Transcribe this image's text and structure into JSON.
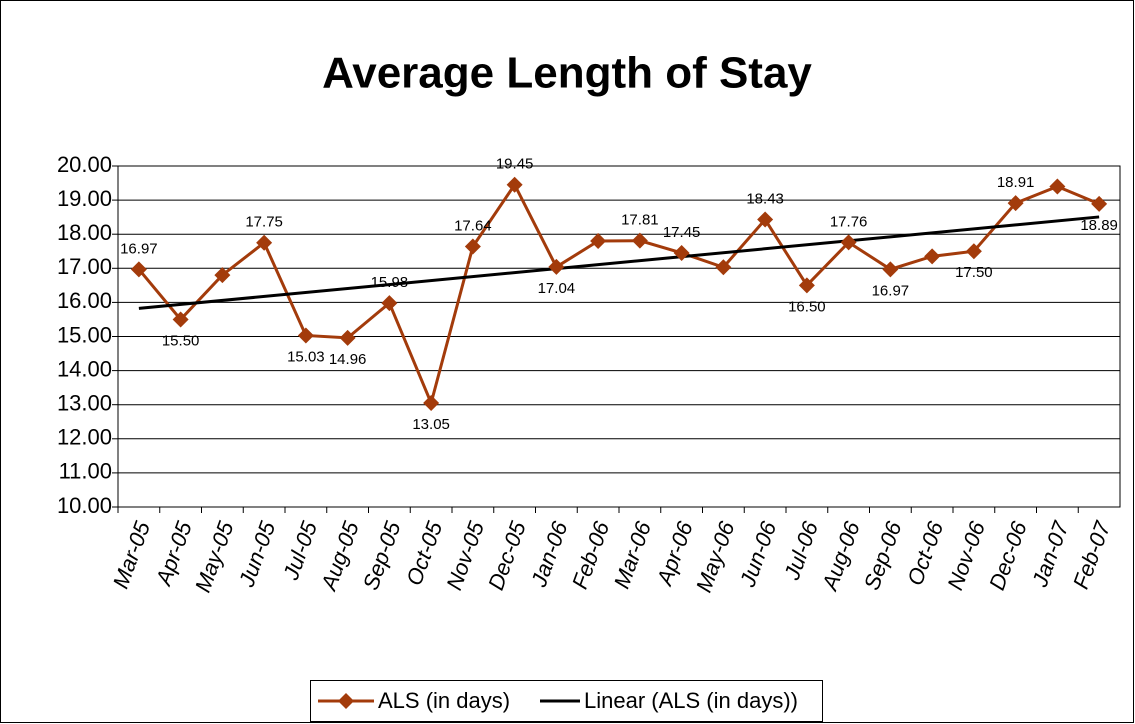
{
  "chart_data": {
    "type": "line",
    "title": "Average Length of Stay",
    "categories": [
      "Mar-05",
      "Apr-05",
      "May-05",
      "Jun-05",
      "Jul-05",
      "Aug-05",
      "Sep-05",
      "Oct-05",
      "Nov-05",
      "Dec-05",
      "Jan-06",
      "Feb-06",
      "Mar-06",
      "Apr-06",
      "May-06",
      "Jun-06",
      "Jul-06",
      "Aug-06",
      "Sep-06",
      "Oct-06",
      "Nov-06",
      "Dec-06",
      "Jan-07",
      "Feb-07"
    ],
    "series": [
      {
        "name": "ALS (in days)",
        "color": "#a33b0b",
        "values": [
          16.97,
          15.5,
          16.8,
          17.75,
          15.03,
          14.96,
          15.98,
          13.05,
          17.64,
          19.45,
          17.04,
          17.8,
          17.81,
          17.45,
          17.03,
          18.43,
          16.5,
          17.76,
          16.97,
          17.35,
          17.5,
          18.91,
          19.4,
          18.89
        ],
        "value_labels": [
          "16.97",
          "15.50",
          null,
          "17.75",
          "15.03",
          "14.96",
          "15.98",
          "13.05",
          "17.64",
          "19.45",
          "17.04",
          null,
          "17.81",
          "17.45",
          null,
          "18.43",
          "16.50",
          "17.76",
          "16.97",
          null,
          "17.50",
          "18.91",
          null,
          "18.89"
        ]
      }
    ],
    "trendline": {
      "name": "Linear (ALS (in days))",
      "color": "#000000",
      "type": "linear"
    },
    "ylim": [
      10,
      20
    ],
    "yticks": [
      {
        "value": 10,
        "label": "10.00"
      },
      {
        "value": 11,
        "label": "11.00"
      },
      {
        "value": 12,
        "label": "12.00"
      },
      {
        "value": 13,
        "label": "13.00"
      },
      {
        "value": 14,
        "label": "14.00"
      },
      {
        "value": 15,
        "label": "15.00"
      },
      {
        "value": 16,
        "label": "16.00"
      },
      {
        "value": 17,
        "label": "17.00"
      },
      {
        "value": 18,
        "label": "18.00"
      },
      {
        "value": 19,
        "label": "19.00"
      },
      {
        "value": 20,
        "label": "20.00"
      }
    ],
    "grid": true,
    "legend": "bottom"
  }
}
